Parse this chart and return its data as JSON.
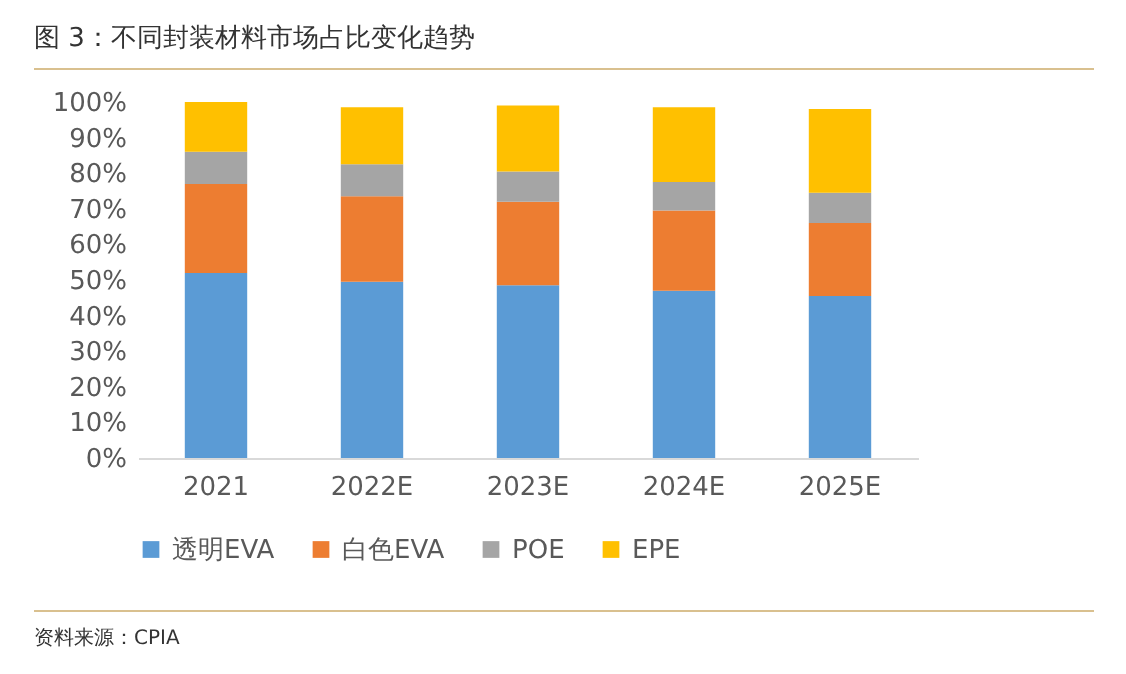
{
  "chart_data": {
    "type": "bar",
    "title": "图 3：不同封装材料市场占比变化趋势",
    "stacked": true,
    "categories": [
      "2021",
      "2022E",
      "2023E",
      "2024E",
      "2025E"
    ],
    "series": [
      {
        "name": "透明EVA",
        "color": "#5b9bd5",
        "values": [
          52,
          49.5,
          48.5,
          47,
          45.5
        ]
      },
      {
        "name": "白色EVA",
        "color": "#ed7d31",
        "values": [
          25,
          24,
          23.5,
          22.5,
          20.5
        ]
      },
      {
        "name": "POE",
        "color": "#a5a5a5",
        "values": [
          9,
          9,
          8.5,
          8,
          8.5
        ]
      },
      {
        "name": "EPE",
        "color": "#ffc000",
        "values": [
          14,
          16,
          18.5,
          21,
          23.5
        ]
      }
    ],
    "ylim": [
      0,
      100
    ],
    "yticks": [
      {
        "value": 0,
        "label": "0%"
      },
      {
        "value": 10,
        "label": "10%"
      },
      {
        "value": 20,
        "label": "20%"
      },
      {
        "value": 30,
        "label": "30%"
      },
      {
        "value": 40,
        "label": "40%"
      },
      {
        "value": 50,
        "label": "50%"
      },
      {
        "value": 60,
        "label": "60%"
      },
      {
        "value": 70,
        "label": "70%"
      },
      {
        "value": 80,
        "label": "80%"
      },
      {
        "value": 90,
        "label": "90%"
      },
      {
        "value": 100,
        "label": "100%"
      }
    ],
    "grid": false,
    "legend": "bottom",
    "annotations": [
      "资料来源：CPIA"
    ]
  }
}
